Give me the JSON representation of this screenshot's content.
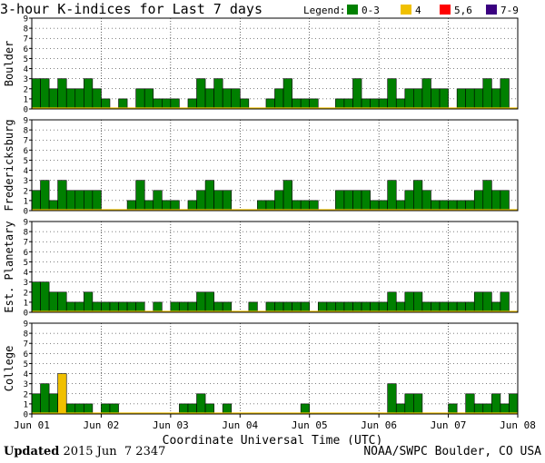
{
  "title": "3-hour K-indices for Last 7 days",
  "legend": {
    "label": "Legend:",
    "items": [
      {
        "label": "0-3",
        "color": "#008000"
      },
      {
        "label": "4",
        "color": "#f0c000"
      },
      {
        "label": "5,6",
        "color": "#ff0000"
      },
      {
        "label": "7-9",
        "color": "#3a0080"
      }
    ]
  },
  "footer": {
    "updated_label": "Updated",
    "updated_value": "2015 Jun  7 2347",
    "source": "NOAA/SWPC Boulder, CO USA"
  },
  "chart_data": {
    "type": "bar",
    "xlabel": "Coordinate Universal Time (UTC)",
    "x_ticks": [
      "Jun 01",
      "Jun 02",
      "Jun 03",
      "Jun 04",
      "Jun 05",
      "Jun 06",
      "Jun 07",
      "Jun 08"
    ],
    "ylim": [
      0,
      9
    ],
    "y_ticks": [
      0,
      1,
      2,
      3,
      4,
      5,
      6,
      7,
      8,
      9
    ],
    "grid": true,
    "bars_per_day": 8,
    "panels": [
      {
        "name": "Boulder",
        "values": [
          3,
          3,
          2,
          3,
          2,
          2,
          3,
          2,
          1,
          0,
          1,
          0,
          2,
          2,
          1,
          1,
          1,
          0,
          1,
          3,
          2,
          3,
          2,
          2,
          1,
          0,
          0,
          1,
          2,
          3,
          1,
          1,
          1,
          0,
          0,
          1,
          1,
          3,
          1,
          1,
          1,
          3,
          1,
          2,
          2,
          3,
          2,
          2,
          0,
          2,
          2,
          2,
          3,
          2,
          3,
          0
        ]
      },
      {
        "name": "Fredericksburg",
        "values": [
          2,
          3,
          1,
          3,
          2,
          2,
          2,
          2,
          0,
          0,
          0,
          1,
          3,
          1,
          2,
          1,
          1,
          0,
          1,
          2,
          3,
          2,
          2,
          0,
          0,
          0,
          1,
          1,
          2,
          3,
          1,
          1,
          1,
          0,
          0,
          2,
          2,
          2,
          2,
          1,
          1,
          3,
          1,
          2,
          3,
          2,
          1,
          1,
          1,
          1,
          1,
          2,
          3,
          2,
          2,
          0
        ]
      },
      {
        "name": "Est. Planetary",
        "values": [
          3,
          3,
          2,
          2,
          1,
          1,
          2,
          1,
          1,
          1,
          1,
          1,
          1,
          0,
          1,
          0,
          1,
          1,
          1,
          2,
          2,
          1,
          1,
          0,
          0,
          1,
          0,
          1,
          1,
          1,
          1,
          1,
          0,
          1,
          1,
          1,
          1,
          1,
          1,
          1,
          1,
          2,
          1,
          2,
          2,
          1,
          1,
          1,
          1,
          1,
          1,
          2,
          2,
          1,
          2,
          0
        ]
      },
      {
        "name": "College",
        "values": [
          2,
          3,
          2,
          4,
          1,
          1,
          1,
          0,
          1,
          1,
          0,
          0,
          0,
          0,
          0,
          0,
          0,
          1,
          1,
          2,
          1,
          0,
          1,
          0,
          0,
          0,
          0,
          0,
          0,
          0,
          0,
          1,
          0,
          0,
          0,
          0,
          0,
          0,
          0,
          0,
          0,
          3,
          1,
          2,
          2,
          0,
          0,
          0,
          1,
          0,
          2,
          1,
          1,
          2,
          1,
          2
        ]
      }
    ]
  }
}
